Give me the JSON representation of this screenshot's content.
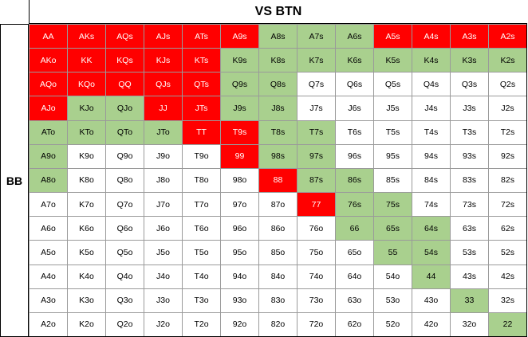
{
  "title": "VS BTN",
  "side_label": "BB",
  "colors": {
    "red": "#ff0000",
    "green": "#a9d08e",
    "white": "#ffffff"
  },
  "rows": [
    {
      "cells": [
        {
          "label": "AA",
          "color": "red"
        },
        {
          "label": "AKs",
          "color": "red"
        },
        {
          "label": "AQs",
          "color": "red"
        },
        {
          "label": "AJs",
          "color": "red"
        },
        {
          "label": "ATs",
          "color": "red"
        },
        {
          "label": "A9s",
          "color": "red"
        },
        {
          "label": "A8s",
          "color": "green"
        },
        {
          "label": "A7s",
          "color": "green"
        },
        {
          "label": "A6s",
          "color": "green"
        },
        {
          "label": "A5s",
          "color": "red"
        },
        {
          "label": "A4s",
          "color": "red"
        },
        {
          "label": "A3s",
          "color": "red"
        },
        {
          "label": "A2s",
          "color": "red"
        }
      ]
    },
    {
      "cells": [
        {
          "label": "AKo",
          "color": "red"
        },
        {
          "label": "KK",
          "color": "red"
        },
        {
          "label": "KQs",
          "color": "red"
        },
        {
          "label": "KJs",
          "color": "red"
        },
        {
          "label": "KTs",
          "color": "red"
        },
        {
          "label": "K9s",
          "color": "green"
        },
        {
          "label": "K8s",
          "color": "green"
        },
        {
          "label": "K7s",
          "color": "green"
        },
        {
          "label": "K6s",
          "color": "green"
        },
        {
          "label": "K5s",
          "color": "green"
        },
        {
          "label": "K4s",
          "color": "green"
        },
        {
          "label": "K3s",
          "color": "green"
        },
        {
          "label": "K2s",
          "color": "green"
        }
      ]
    },
    {
      "cells": [
        {
          "label": "AQo",
          "color": "red"
        },
        {
          "label": "KQo",
          "color": "red"
        },
        {
          "label": "QQ",
          "color": "red"
        },
        {
          "label": "QJs",
          "color": "red"
        },
        {
          "label": "QTs",
          "color": "red"
        },
        {
          "label": "Q9s",
          "color": "green"
        },
        {
          "label": "Q8s",
          "color": "green"
        },
        {
          "label": "Q7s",
          "color": "white"
        },
        {
          "label": "Q6s",
          "color": "white"
        },
        {
          "label": "Q5s",
          "color": "white"
        },
        {
          "label": "Q4s",
          "color": "white"
        },
        {
          "label": "Q3s",
          "color": "white"
        },
        {
          "label": "Q2s",
          "color": "white"
        }
      ]
    },
    {
      "cells": [
        {
          "label": "AJo",
          "color": "red"
        },
        {
          "label": "KJo",
          "color": "green"
        },
        {
          "label": "QJo",
          "color": "green"
        },
        {
          "label": "JJ",
          "color": "red"
        },
        {
          "label": "JTs",
          "color": "red"
        },
        {
          "label": "J9s",
          "color": "green"
        },
        {
          "label": "J8s",
          "color": "green"
        },
        {
          "label": "J7s",
          "color": "white"
        },
        {
          "label": "J6s",
          "color": "white"
        },
        {
          "label": "J5s",
          "color": "white"
        },
        {
          "label": "J4s",
          "color": "white"
        },
        {
          "label": "J3s",
          "color": "white"
        },
        {
          "label": "J2s",
          "color": "white"
        }
      ]
    },
    {
      "cells": [
        {
          "label": "ATo",
          "color": "green"
        },
        {
          "label": "KTo",
          "color": "green"
        },
        {
          "label": "QTo",
          "color": "green"
        },
        {
          "label": "JTo",
          "color": "green"
        },
        {
          "label": "TT",
          "color": "red"
        },
        {
          "label": "T9s",
          "color": "red"
        },
        {
          "label": "T8s",
          "color": "green"
        },
        {
          "label": "T7s",
          "color": "green"
        },
        {
          "label": "T6s",
          "color": "white"
        },
        {
          "label": "T5s",
          "color": "white"
        },
        {
          "label": "T4s",
          "color": "white"
        },
        {
          "label": "T3s",
          "color": "white"
        },
        {
          "label": "T2s",
          "color": "white"
        }
      ]
    },
    {
      "cells": [
        {
          "label": "A9o",
          "color": "green"
        },
        {
          "label": "K9o",
          "color": "white"
        },
        {
          "label": "Q9o",
          "color": "white"
        },
        {
          "label": "J9o",
          "color": "white"
        },
        {
          "label": "T9o",
          "color": "white"
        },
        {
          "label": "99",
          "color": "red"
        },
        {
          "label": "98s",
          "color": "green"
        },
        {
          "label": "97s",
          "color": "green"
        },
        {
          "label": "96s",
          "color": "white"
        },
        {
          "label": "95s",
          "color": "white"
        },
        {
          "label": "94s",
          "color": "white"
        },
        {
          "label": "93s",
          "color": "white"
        },
        {
          "label": "92s",
          "color": "white"
        }
      ]
    },
    {
      "cells": [
        {
          "label": "A8o",
          "color": "green"
        },
        {
          "label": "K8o",
          "color": "white"
        },
        {
          "label": "Q8o",
          "color": "white"
        },
        {
          "label": "J8o",
          "color": "white"
        },
        {
          "label": "T8o",
          "color": "white"
        },
        {
          "label": "98o",
          "color": "white"
        },
        {
          "label": "88",
          "color": "red"
        },
        {
          "label": "87s",
          "color": "green"
        },
        {
          "label": "86s",
          "color": "green"
        },
        {
          "label": "85s",
          "color": "white"
        },
        {
          "label": "84s",
          "color": "white"
        },
        {
          "label": "83s",
          "color": "white"
        },
        {
          "label": "82s",
          "color": "white"
        }
      ]
    },
    {
      "cells": [
        {
          "label": "A7o",
          "color": "white"
        },
        {
          "label": "K7o",
          "color": "white"
        },
        {
          "label": "Q7o",
          "color": "white"
        },
        {
          "label": "J7o",
          "color": "white"
        },
        {
          "label": "T7o",
          "color": "white"
        },
        {
          "label": "97o",
          "color": "white"
        },
        {
          "label": "87o",
          "color": "white"
        },
        {
          "label": "77",
          "color": "red"
        },
        {
          "label": "76s",
          "color": "green"
        },
        {
          "label": "75s",
          "color": "green"
        },
        {
          "label": "74s",
          "color": "white"
        },
        {
          "label": "73s",
          "color": "white"
        },
        {
          "label": "72s",
          "color": "white"
        }
      ]
    },
    {
      "cells": [
        {
          "label": "A6o",
          "color": "white"
        },
        {
          "label": "K6o",
          "color": "white"
        },
        {
          "label": "Q6o",
          "color": "white"
        },
        {
          "label": "J6o",
          "color": "white"
        },
        {
          "label": "T6o",
          "color": "white"
        },
        {
          "label": "96o",
          "color": "white"
        },
        {
          "label": "86o",
          "color": "white"
        },
        {
          "label": "76o",
          "color": "white"
        },
        {
          "label": "66",
          "color": "green"
        },
        {
          "label": "65s",
          "color": "green"
        },
        {
          "label": "64s",
          "color": "green"
        },
        {
          "label": "63s",
          "color": "white"
        },
        {
          "label": "62s",
          "color": "white"
        }
      ]
    },
    {
      "cells": [
        {
          "label": "A5o",
          "color": "white"
        },
        {
          "label": "K5o",
          "color": "white"
        },
        {
          "label": "Q5o",
          "color": "white"
        },
        {
          "label": "J5o",
          "color": "white"
        },
        {
          "label": "T5o",
          "color": "white"
        },
        {
          "label": "95o",
          "color": "white"
        },
        {
          "label": "85o",
          "color": "white"
        },
        {
          "label": "75o",
          "color": "white"
        },
        {
          "label": "65o",
          "color": "white"
        },
        {
          "label": "55",
          "color": "green"
        },
        {
          "label": "54s",
          "color": "green"
        },
        {
          "label": "53s",
          "color": "white"
        },
        {
          "label": "52s",
          "color": "white"
        }
      ]
    },
    {
      "cells": [
        {
          "label": "A4o",
          "color": "white"
        },
        {
          "label": "K4o",
          "color": "white"
        },
        {
          "label": "Q4o",
          "color": "white"
        },
        {
          "label": "J4o",
          "color": "white"
        },
        {
          "label": "T4o",
          "color": "white"
        },
        {
          "label": "94o",
          "color": "white"
        },
        {
          "label": "84o",
          "color": "white"
        },
        {
          "label": "74o",
          "color": "white"
        },
        {
          "label": "64o",
          "color": "white"
        },
        {
          "label": "54o",
          "color": "white"
        },
        {
          "label": "44",
          "color": "green"
        },
        {
          "label": "43s",
          "color": "white"
        },
        {
          "label": "42s",
          "color": "white"
        }
      ]
    },
    {
      "cells": [
        {
          "label": "A3o",
          "color": "white"
        },
        {
          "label": "K3o",
          "color": "white"
        },
        {
          "label": "Q3o",
          "color": "white"
        },
        {
          "label": "J3o",
          "color": "white"
        },
        {
          "label": "T3o",
          "color": "white"
        },
        {
          "label": "93o",
          "color": "white"
        },
        {
          "label": "83o",
          "color": "white"
        },
        {
          "label": "73o",
          "color": "white"
        },
        {
          "label": "63o",
          "color": "white"
        },
        {
          "label": "53o",
          "color": "white"
        },
        {
          "label": "43o",
          "color": "white"
        },
        {
          "label": "33",
          "color": "green"
        },
        {
          "label": "32s",
          "color": "white"
        }
      ]
    },
    {
      "cells": [
        {
          "label": "A2o",
          "color": "white"
        },
        {
          "label": "K2o",
          "color": "white"
        },
        {
          "label": "Q2o",
          "color": "white"
        },
        {
          "label": "J2o",
          "color": "white"
        },
        {
          "label": "T2o",
          "color": "white"
        },
        {
          "label": "92o",
          "color": "white"
        },
        {
          "label": "82o",
          "color": "white"
        },
        {
          "label": "72o",
          "color": "white"
        },
        {
          "label": "62o",
          "color": "white"
        },
        {
          "label": "52o",
          "color": "white"
        },
        {
          "label": "42o",
          "color": "white"
        },
        {
          "label": "32o",
          "color": "white"
        },
        {
          "label": "22",
          "color": "green"
        }
      ]
    }
  ]
}
